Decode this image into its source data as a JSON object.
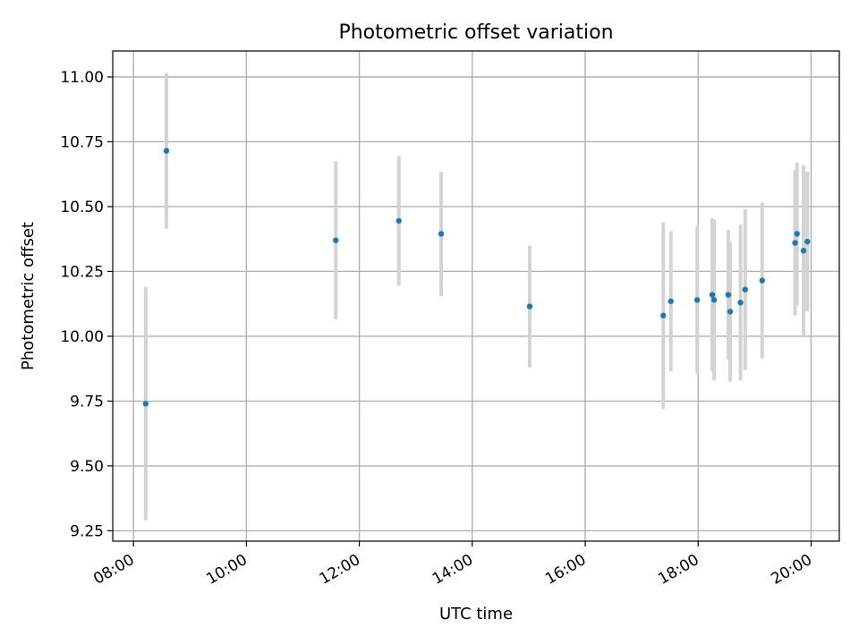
{
  "chart_data": {
    "type": "scatter",
    "title": "Photometric offset variation",
    "xlabel": "UTC time",
    "ylabel": "Photometric offset",
    "x_ticks": [
      "08:00",
      "10:00",
      "12:00",
      "14:00",
      "16:00",
      "18:00",
      "20:00"
    ],
    "y_ticks": [
      "9.25",
      "9.50",
      "9.75",
      "10.00",
      "10.25",
      "10.50",
      "10.75",
      "11.00"
    ],
    "xlim": [
      "07:38",
      "20:30"
    ],
    "ylim": [
      9.21,
      11.1
    ],
    "grid": true,
    "colors": {
      "points": "#1f77b4",
      "errorbars": "#d3d3d3",
      "grid": "#b0b0b0"
    },
    "points": [
      {
        "x": "08:13",
        "y": 9.74,
        "yerr": 0.45
      },
      {
        "x": "08:35",
        "y": 10.715,
        "yerr": 0.3
      },
      {
        "x": "11:35",
        "y": 10.37,
        "yerr": 0.305
      },
      {
        "x": "12:42",
        "y": 10.445,
        "yerr": 0.25
      },
      {
        "x": "13:27",
        "y": 10.395,
        "yerr": 0.24
      },
      {
        "x": "15:01",
        "y": 10.115,
        "yerr": 0.235
      },
      {
        "x": "17:23",
        "y": 10.08,
        "yerr": 0.36
      },
      {
        "x": "17:31",
        "y": 10.135,
        "yerr": 0.27
      },
      {
        "x": "17:59",
        "y": 10.14,
        "yerr": 0.285
      },
      {
        "x": "18:15",
        "y": 10.16,
        "yerr": 0.295
      },
      {
        "x": "18:17",
        "y": 10.14,
        "yerr": 0.31
      },
      {
        "x": "18:32",
        "y": 10.16,
        "yerr": 0.25
      },
      {
        "x": "18:34",
        "y": 10.095,
        "yerr": 0.27
      },
      {
        "x": "18:45",
        "y": 10.13,
        "yerr": 0.3
      },
      {
        "x": "18:50",
        "y": 10.18,
        "yerr": 0.31
      },
      {
        "x": "19:08",
        "y": 10.215,
        "yerr": 0.3
      },
      {
        "x": "19:43",
        "y": 10.36,
        "yerr": 0.28
      },
      {
        "x": "19:45",
        "y": 10.395,
        "yerr": 0.275
      },
      {
        "x": "19:52",
        "y": 10.33,
        "yerr": 0.33
      },
      {
        "x": "19:56",
        "y": 10.365,
        "yerr": 0.27
      }
    ]
  }
}
